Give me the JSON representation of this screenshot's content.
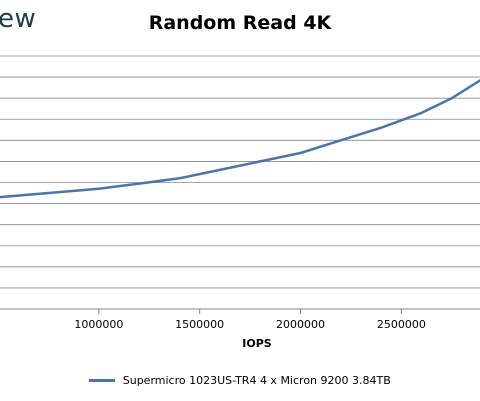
{
  "logo": {
    "text": "ew"
  },
  "colors": {
    "series": "#4a74ad",
    "grid": "#878787",
    "axis": "#878787"
  },
  "chart_data": {
    "type": "line",
    "title": "Random Read 4K",
    "xlabel": "IOPS",
    "ylabel": "",
    "x_ticks": [
      "1000000",
      "1500000",
      "2000000",
      "2500000"
    ],
    "x_tick_values": [
      1000000,
      1500000,
      2000000,
      2500000
    ],
    "xlim": [
      500000,
      2900000
    ],
    "ylim": [
      0,
      12
    ],
    "grid": true,
    "legend_position": "bottom",
    "series": [
      {
        "name": "Supermicro 1023US-TR4 4 x Micron 9200 3.84TB",
        "x": [
          500000,
          1000000,
          1200000,
          1400000,
          1600000,
          1800000,
          2000000,
          2200000,
          2400000,
          2600000,
          2750000,
          2900000
        ],
        "y": [
          5.3,
          5.7,
          5.95,
          6.2,
          6.6,
          7.0,
          7.4,
          8.0,
          8.6,
          9.3,
          10.0,
          10.9
        ]
      }
    ]
  }
}
